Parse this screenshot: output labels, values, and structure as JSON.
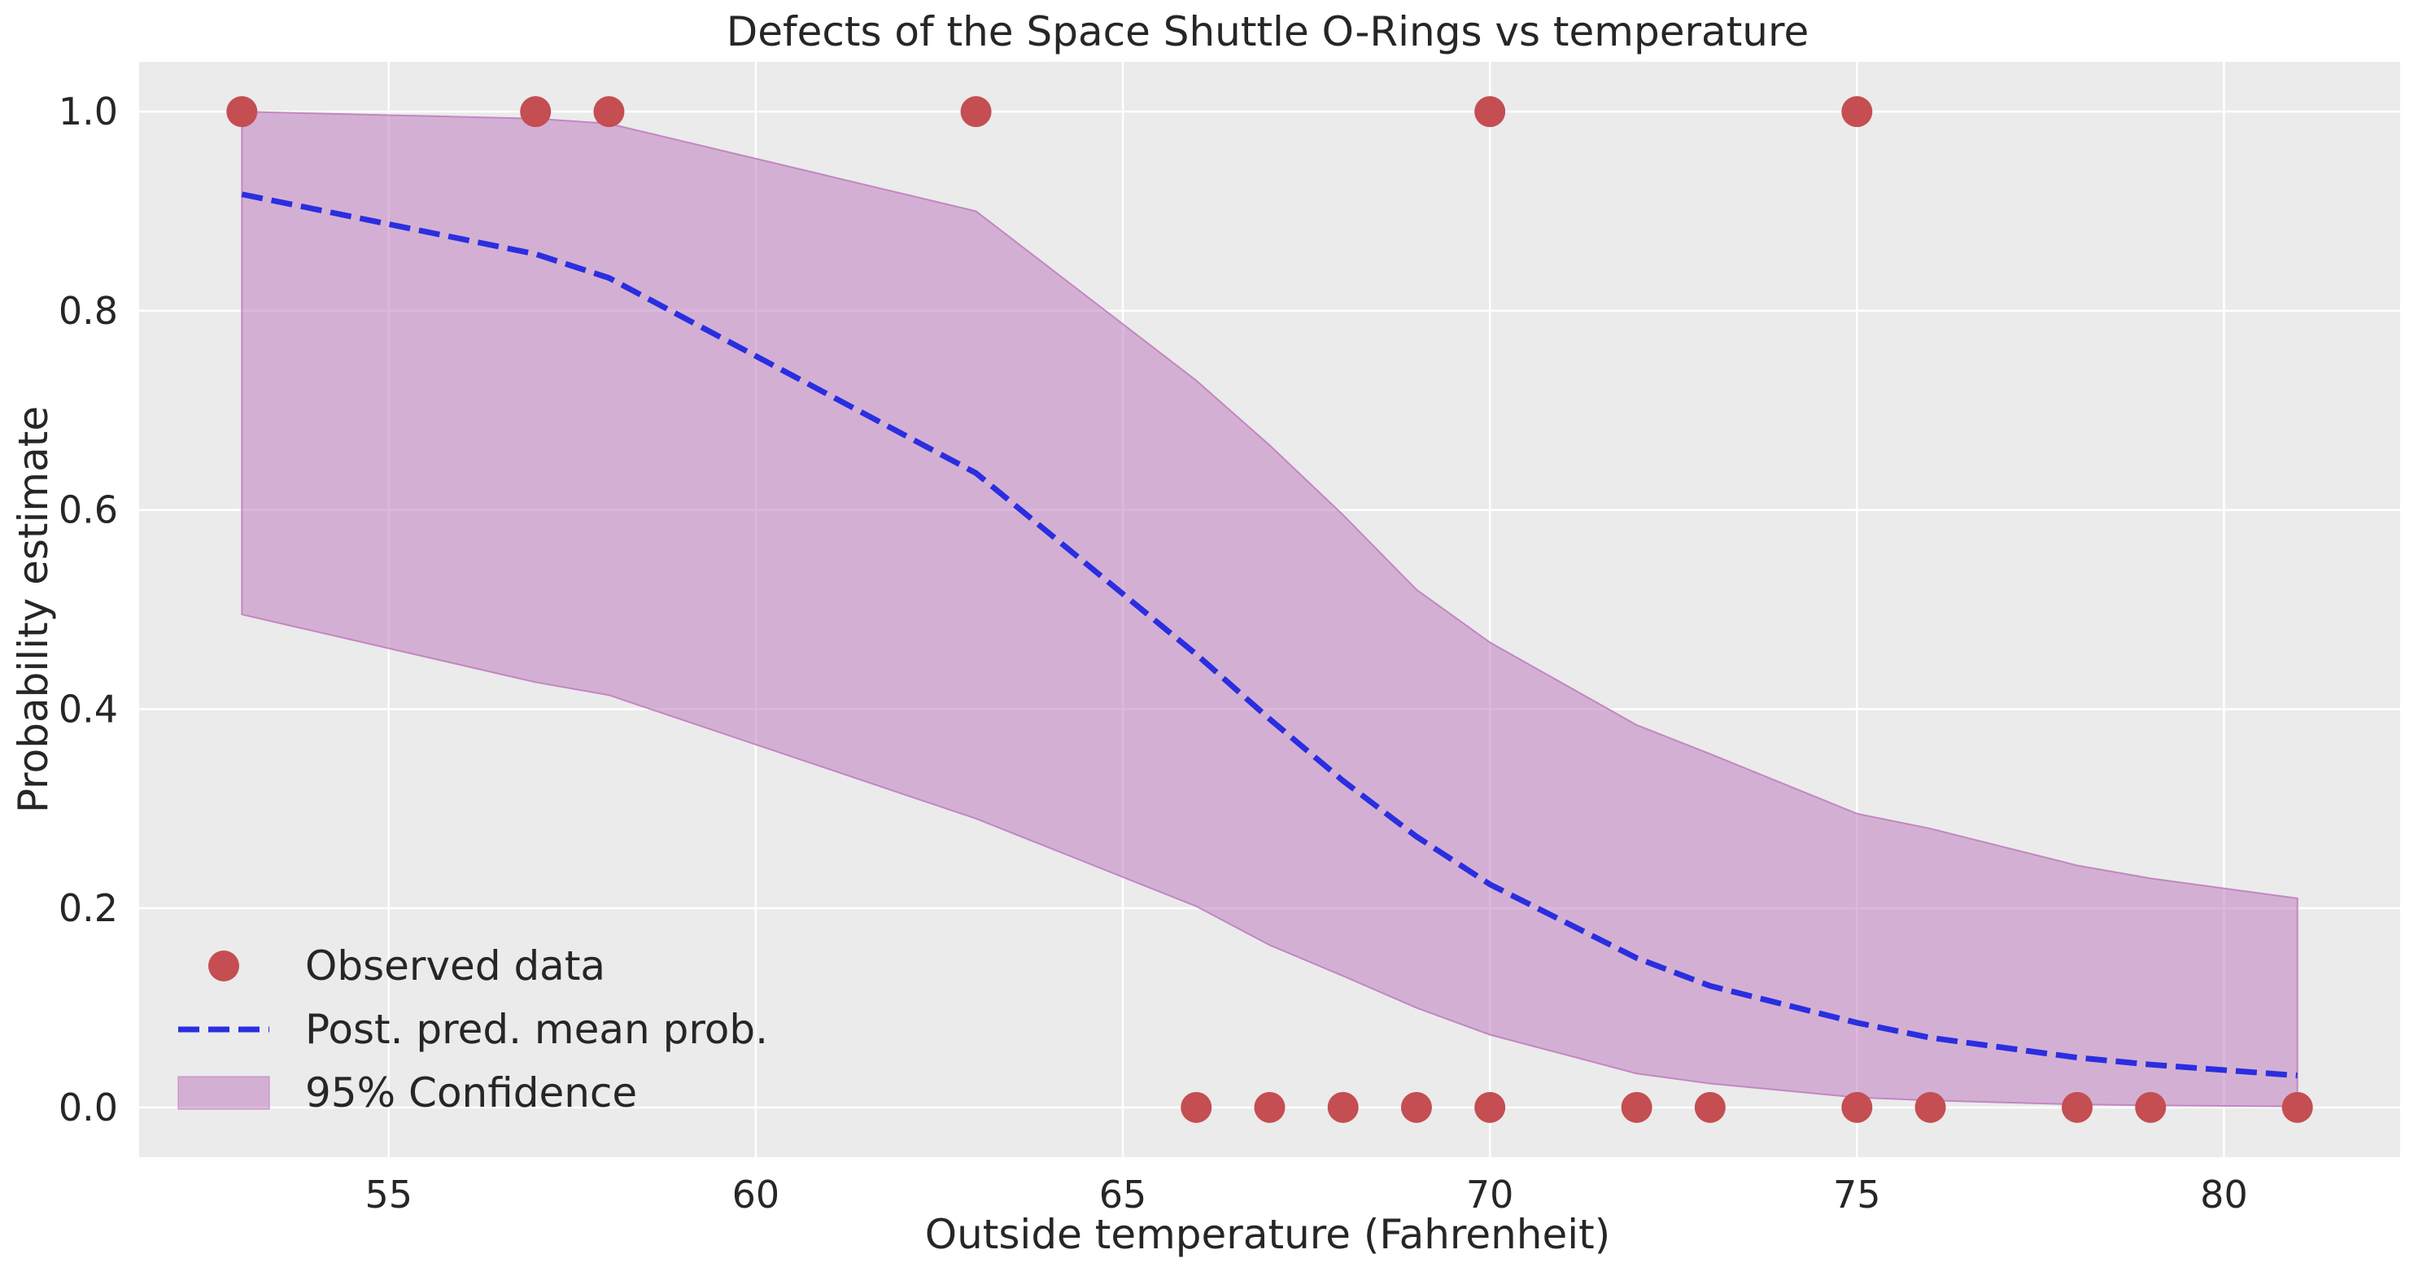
{
  "chart_data": {
    "type": "scatter",
    "title": "Defects of the Space Shuttle O-Rings vs temperature",
    "xlabel": "Outside temperature (Fahrenheit)",
    "ylabel": "Probability estimate",
    "xlim": [
      51.6,
      82.4
    ],
    "ylim": [
      -0.05,
      1.05
    ],
    "x_ticks": [
      55,
      60,
      65,
      70,
      75,
      80
    ],
    "y_ticks": [
      0.0,
      0.2,
      0.4,
      0.6,
      0.8,
      1.0
    ],
    "x_tick_labels": [
      "55",
      "60",
      "65",
      "70",
      "75",
      "80"
    ],
    "y_tick_labels": [
      "0.0",
      "0.2",
      "0.4",
      "0.6",
      "0.8",
      "1.0"
    ],
    "grid": true,
    "background": "#ebebeb",
    "legend_position": "lower-left",
    "observed": {
      "name": "Observed data",
      "color": "#c44e52",
      "x": [
        53,
        57,
        58,
        63,
        70,
        75,
        66,
        67,
        68,
        69,
        70,
        72,
        73,
        75,
        76,
        78,
        79,
        81
      ],
      "y": [
        1,
        1,
        1,
        1,
        1,
        1,
        0,
        0,
        0,
        0,
        0,
        0,
        0,
        0,
        0,
        0,
        0,
        0
      ]
    },
    "mean": {
      "name": "Post. pred. mean prob.",
      "color": "#2a2ee0",
      "style": "dashed",
      "x": [
        53,
        57,
        58,
        63,
        66,
        67,
        68,
        69,
        70,
        72,
        73,
        75,
        76,
        78,
        79,
        81
      ],
      "y": [
        0.917,
        0.857,
        0.833,
        0.637,
        0.455,
        0.39,
        0.328,
        0.272,
        0.224,
        0.15,
        0.122,
        0.085,
        0.07,
        0.05,
        0.043,
        0.032
      ]
    },
    "band": {
      "name": "95% Confidence",
      "color": "#bf7fbf",
      "x": [
        53,
        57,
        58,
        63,
        66,
        67,
        68,
        69,
        70,
        72,
        73,
        75,
        76,
        78,
        79,
        81
      ],
      "lower": [
        0.495,
        0.427,
        0.414,
        0.29,
        0.202,
        0.163,
        0.132,
        0.1,
        0.073,
        0.034,
        0.024,
        0.01,
        0.007,
        0.003,
        0.002,
        0.001
      ],
      "upper": [
        1.0,
        0.993,
        0.988,
        0.9,
        0.73,
        0.665,
        0.595,
        0.52,
        0.467,
        0.384,
        0.355,
        0.295,
        0.28,
        0.243,
        0.23,
        0.21
      ]
    }
  }
}
